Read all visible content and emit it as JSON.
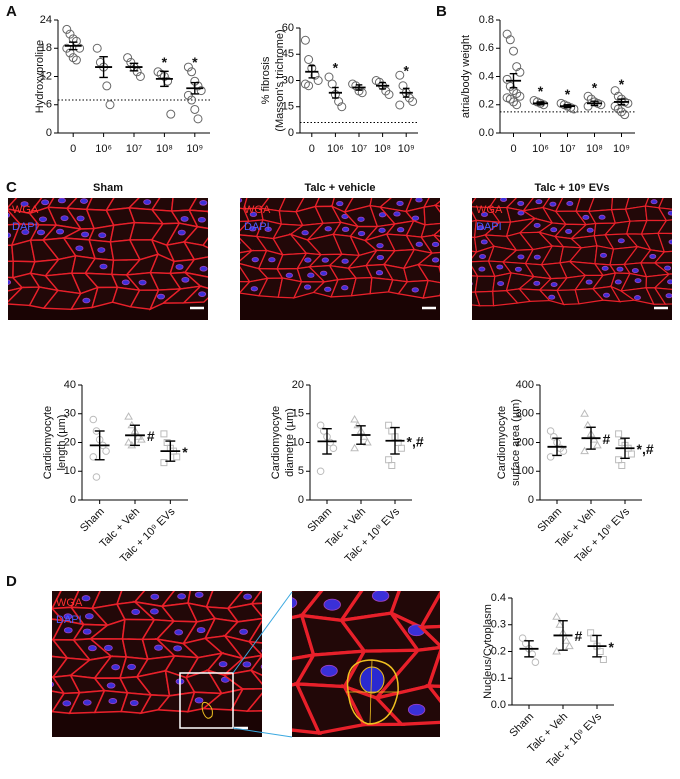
{
  "panel_labels": [
    "A",
    "B",
    "C",
    "D"
  ],
  "micrographs": [
    {
      "title": "Sham",
      "stains": [
        "WGA",
        "DAPI"
      ]
    },
    {
      "title": "Talc + vehicle",
      "stains": [
        "WGA",
        "DAPI"
      ]
    },
    {
      "title": "Talc + 10⁹ EVs",
      "stains": [
        "WGA",
        "DAPI"
      ]
    },
    {
      "stains": [
        "WGA",
        "DAPI"
      ]
    }
  ],
  "chart_data": [
    {
      "type": "dot",
      "y_label": [
        "Hydroxyproline"
      ],
      "categories": [
        "0",
        "10⁶",
        "10⁷",
        "10⁸",
        "10⁹"
      ],
      "values": [
        18.5,
        14,
        14,
        11.5,
        9.5
      ],
      "errors": [
        0.8,
        2.2,
        0.8,
        1.6,
        1.2
      ],
      "points": [
        [
          22,
          21,
          20,
          19.5,
          18,
          18,
          17,
          16,
          15.5
        ],
        [
          18,
          15,
          14,
          10,
          6
        ],
        [
          16,
          15,
          14,
          13,
          12
        ],
        [
          13,
          12.5,
          12,
          11,
          4
        ],
        [
          14,
          13,
          11,
          10,
          9,
          8,
          7,
          5,
          3
        ]
      ],
      "ylim": [
        0,
        24
      ],
      "yticks": [
        0,
        6,
        12,
        18,
        24
      ],
      "baseline": 7,
      "annotations": [
        null,
        null,
        null,
        "*",
        "*"
      ],
      "annotation_position": "above",
      "markers": [
        "circle",
        "circle",
        "circle",
        "circle",
        "circle"
      ],
      "point_color": "#666666",
      "label_rotation": 0
    },
    {
      "type": "dot",
      "y_label": [
        "% fibrosis",
        "(Masson's trichrome)"
      ],
      "categories": [
        "0",
        "10⁶",
        "10⁷",
        "10⁸",
        "10⁹"
      ],
      "values": [
        35,
        23,
        26,
        27,
        23
      ],
      "errors": [
        3.5,
        3,
        1.5,
        1.8,
        2.5
      ],
      "points": [
        [
          53,
          42,
          37,
          33,
          30,
          28,
          27
        ],
        [
          32,
          28,
          22,
          18,
          15
        ],
        [
          28,
          27,
          24,
          23
        ],
        [
          30,
          29,
          27,
          24,
          22
        ],
        [
          33,
          27,
          23,
          20,
          18,
          16
        ]
      ],
      "ylim": [
        0,
        60
      ],
      "yticks": [
        0,
        15,
        30,
        45,
        60
      ],
      "baseline": 6,
      "annotations": [
        null,
        "*",
        null,
        null,
        "*"
      ],
      "annotation_position": "above",
      "markers": [
        "circle",
        "circle",
        "circle",
        "circle",
        "circle"
      ],
      "point_color": "#666666",
      "label_rotation": 0
    },
    {
      "type": "dot",
      "y_label": [
        "atria/body weight"
      ],
      "categories": [
        "0",
        "10⁶",
        "10⁷",
        "10⁸",
        "10⁹"
      ],
      "values": [
        0.37,
        0.21,
        0.19,
        0.21,
        0.22
      ],
      "errors": [
        0.05,
        0.01,
        0.01,
        0.015,
        0.02
      ],
      "points": [
        [
          0.7,
          0.66,
          0.58,
          0.47,
          0.43,
          0.38,
          0.33,
          0.3,
          0.28,
          0.26,
          0.25,
          0.24,
          0.22,
          0.2
        ],
        [
          0.23,
          0.22,
          0.21,
          0.2
        ],
        [
          0.21,
          0.2,
          0.19,
          0.18,
          0.17
        ],
        [
          0.26,
          0.24,
          0.22,
          0.21,
          0.2,
          0.19
        ],
        [
          0.3,
          0.26,
          0.24,
          0.22,
          0.21,
          0.19,
          0.17,
          0.15,
          0.13
        ]
      ],
      "ylim": [
        0,
        0.8
      ],
      "yticks": [
        {
          "value": 0,
          "label": "0.0"
        },
        0.2,
        0.4,
        0.6,
        0.8
      ],
      "baseline": 0.15,
      "annotations": [
        null,
        "*",
        "*",
        "*",
        "*"
      ],
      "annotation_position": "above",
      "markers": [
        "circle",
        "circle",
        "circle",
        "circle",
        "circle"
      ],
      "point_color": "#666666",
      "label_rotation": 0
    },
    {
      "type": "dot",
      "y_label": [
        "Cardiomyocyte",
        "length (µm)"
      ],
      "categories": [
        "Sham",
        "Talc + Veh",
        "Talc + 10⁹ EVs"
      ],
      "values": [
        19,
        22.5,
        17
      ],
      "errors": [
        5,
        3.5,
        3.5
      ],
      "points": [
        [
          28,
          24,
          21,
          19,
          17,
          15,
          8
        ],
        [
          29,
          26,
          24,
          22,
          21,
          20,
          19
        ],
        [
          23,
          20,
          18,
          17,
          15,
          13
        ]
      ],
      "ylim": [
        0,
        40
      ],
      "yticks": [
        0,
        10,
        20,
        30,
        40
      ],
      "annotations": [
        null,
        "#",
        "*"
      ],
      "annotation_position": "right",
      "markers": [
        "circle",
        "triangle",
        "square"
      ],
      "point_color": "#bbbbbb",
      "label_rotation": -45
    },
    {
      "type": "dot",
      "y_label": [
        "Cardiomyocyte",
        "diametre (µm)"
      ],
      "categories": [
        "Sham",
        "Talc + Veh",
        "Talc + 10⁹ EVs"
      ],
      "values": [
        10.2,
        11.3,
        10.3
      ],
      "errors": [
        2.2,
        1.6,
        2.3
      ],
      "points": [
        [
          13,
          12,
          11,
          10,
          9,
          5
        ],
        [
          14,
          13,
          12,
          11,
          10,
          9
        ],
        [
          13,
          12,
          11,
          10,
          9,
          7,
          6
        ]
      ],
      "ylim": [
        0,
        20
      ],
      "yticks": [
        0,
        5,
        10,
        15,
        20
      ],
      "annotations": [
        null,
        null,
        "*,#"
      ],
      "annotation_position": "right",
      "markers": [
        "circle",
        "triangle",
        "square"
      ],
      "point_color": "#bbbbbb",
      "label_rotation": -45
    },
    {
      "type": "dot",
      "y_label": [
        "Cardiomyocyte",
        "surface area (µm)"
      ],
      "categories": [
        "Sham",
        "Talc + Veh",
        "Talc + 10⁹ EVs"
      ],
      "values": [
        185,
        215,
        180
      ],
      "errors": [
        30,
        38,
        35
      ],
      "points": [
        [
          240,
          220,
          200,
          180,
          170,
          150
        ],
        [
          300,
          260,
          230,
          210,
          190,
          170
        ],
        [
          230,
          200,
          190,
          180,
          160,
          140,
          120
        ]
      ],
      "ylim": [
        0,
        400
      ],
      "yticks": [
        0,
        100,
        200,
        300,
        400
      ],
      "annotations": [
        null,
        "#",
        "*,#"
      ],
      "annotation_position": "right",
      "markers": [
        "circle",
        "triangle",
        "square"
      ],
      "point_color": "#bbbbbb",
      "label_rotation": -45
    },
    {
      "type": "dot",
      "y_label": [
        "Nucleus/Cytoplasm"
      ],
      "categories": [
        "Sham",
        "Talc + Veh",
        "Talc + 10⁹ EVs"
      ],
      "values": [
        0.21,
        0.26,
        0.22
      ],
      "errors": [
        0.03,
        0.055,
        0.04
      ],
      "points": [
        [
          0.25,
          0.23,
          0.21,
          0.19,
          0.16
        ],
        [
          0.33,
          0.3,
          0.27,
          0.24,
          0.22,
          0.2
        ],
        [
          0.27,
          0.25,
          0.22,
          0.2,
          0.17
        ]
      ],
      "ylim": [
        0,
        0.4
      ],
      "yticks": [
        {
          "value": 0,
          "label": "0.0"
        },
        0.1,
        0.2,
        0.3,
        0.4
      ],
      "annotations": [
        null,
        "#",
        "*"
      ],
      "annotation_position": "right",
      "markers": [
        "circle",
        "triangle",
        "square"
      ],
      "point_color": "#bbbbbb",
      "label_rotation": -45
    }
  ]
}
